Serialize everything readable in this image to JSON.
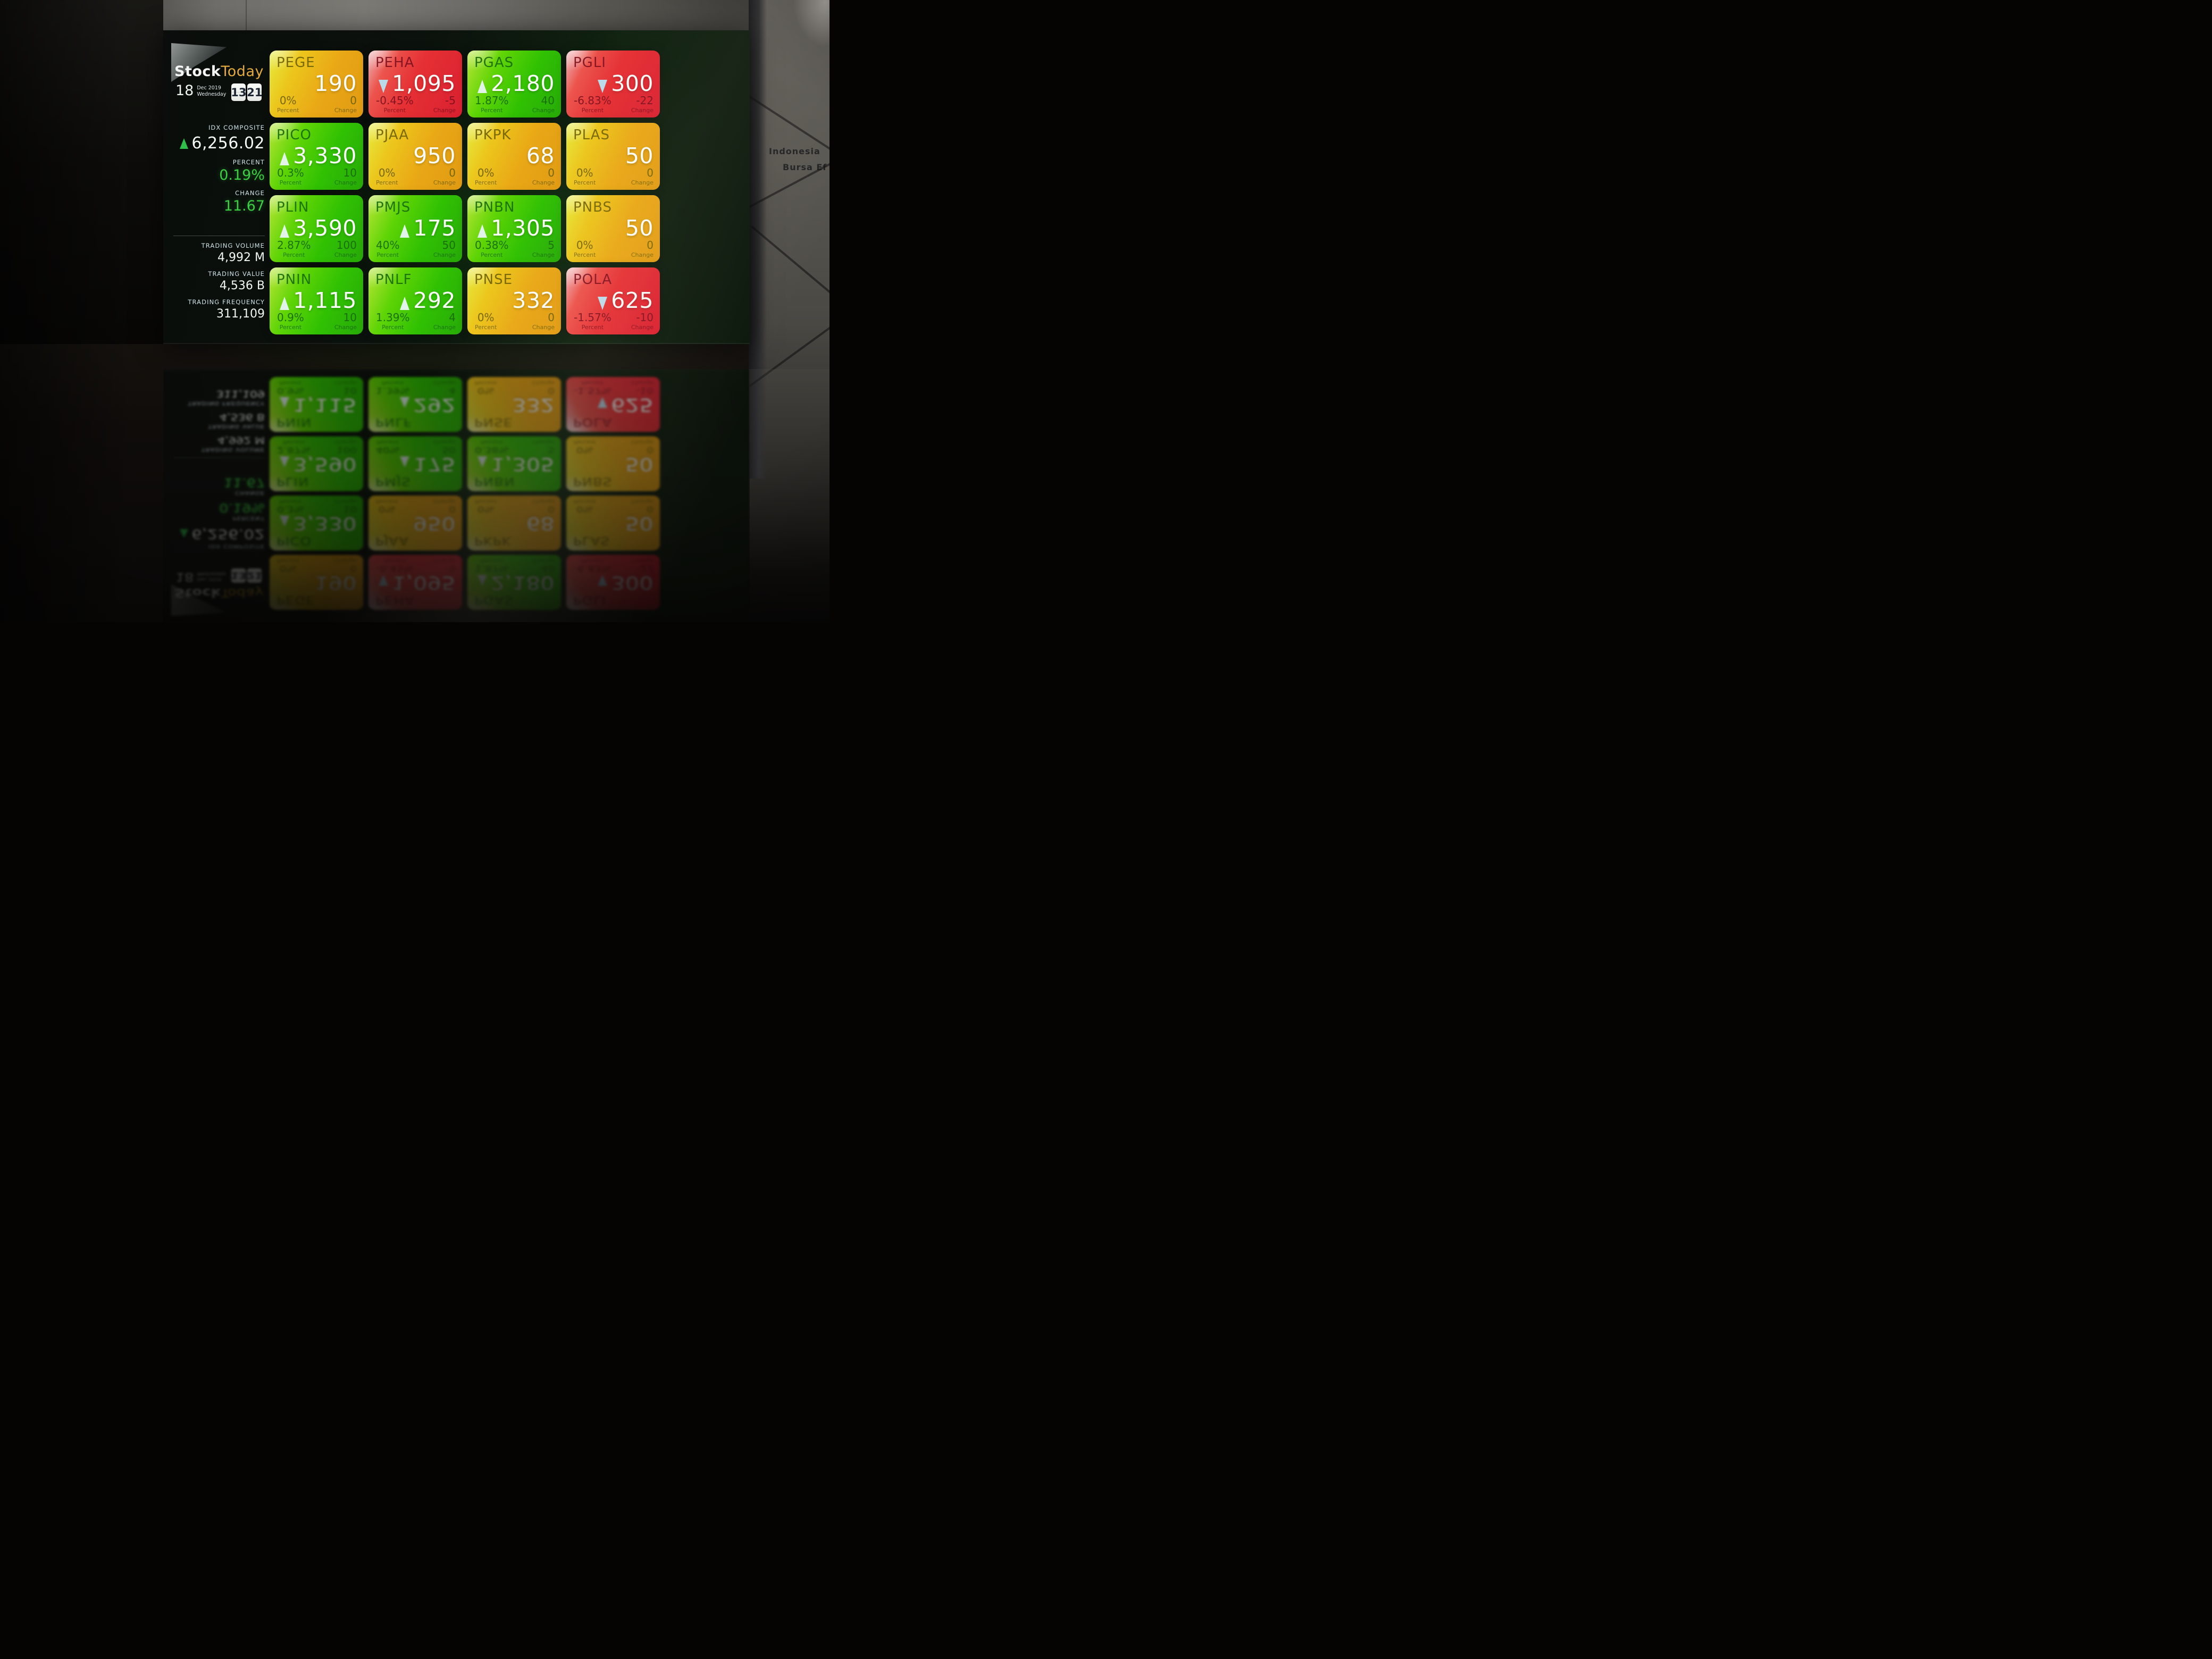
{
  "brand": {
    "title_primary": "Stock",
    "title_secondary": "Today"
  },
  "datetime": {
    "day": "18",
    "month_year": "Dec 2019",
    "weekday": "Wednesday",
    "clock_hh": "13",
    "clock_mm": "21"
  },
  "index": {
    "label": "IDX COMPOSITE",
    "value": "6,256.02",
    "direction": "up",
    "percent_label": "PERCENT",
    "percent": "0.19%",
    "change_label": "CHANGE",
    "change": "11.67"
  },
  "stats": [
    {
      "label": "TRADING VOLUME",
      "value": "4,992 M"
    },
    {
      "label": "TRADING VALUE",
      "value": "4,536 B"
    },
    {
      "label": "TRADING FREQUENCY",
      "value": "311,109"
    }
  ],
  "tile_labels": {
    "percent": "Percent",
    "change": "Change"
  },
  "tiles": [
    {
      "symbol": "PEGE",
      "price": "190",
      "direction": "flat",
      "percent": "0%",
      "change": "0",
      "color": "orange"
    },
    {
      "symbol": "PEHA",
      "price": "1,095",
      "direction": "down",
      "percent": "-0.45%",
      "change": "-5",
      "color": "red"
    },
    {
      "symbol": "PGAS",
      "price": "2,180",
      "direction": "up",
      "percent": "1.87%",
      "change": "40",
      "color": "green"
    },
    {
      "symbol": "PGLI",
      "price": "300",
      "direction": "down",
      "percent": "-6.83%",
      "change": "-22",
      "color": "red"
    },
    {
      "symbol": "PICO",
      "price": "3,330",
      "direction": "up",
      "percent": "0.3%",
      "change": "10",
      "color": "green"
    },
    {
      "symbol": "PJAA",
      "price": "950",
      "direction": "flat",
      "percent": "0%",
      "change": "0",
      "color": "orange"
    },
    {
      "symbol": "PKPK",
      "price": "68",
      "direction": "flat",
      "percent": "0%",
      "change": "0",
      "color": "orange"
    },
    {
      "symbol": "PLAS",
      "price": "50",
      "direction": "flat",
      "percent": "0%",
      "change": "0",
      "color": "orange"
    },
    {
      "symbol": "PLIN",
      "price": "3,590",
      "direction": "up",
      "percent": "2.87%",
      "change": "100",
      "color": "green"
    },
    {
      "symbol": "PMJS",
      "price": "175",
      "direction": "up",
      "percent": "40%",
      "change": "50",
      "color": "green"
    },
    {
      "symbol": "PNBN",
      "price": "1,305",
      "direction": "up",
      "percent": "0.38%",
      "change": "5",
      "color": "green"
    },
    {
      "symbol": "PNBS",
      "price": "50",
      "direction": "flat",
      "percent": "0%",
      "change": "0",
      "color": "orange"
    },
    {
      "symbol": "PNIN",
      "price": "1,115",
      "direction": "up",
      "percent": "0.9%",
      "change": "10",
      "color": "green"
    },
    {
      "symbol": "PNLF",
      "price": "292",
      "direction": "up",
      "percent": "1.39%",
      "change": "4",
      "color": "green"
    },
    {
      "symbol": "PNSE",
      "price": "332",
      "direction": "flat",
      "percent": "0%",
      "change": "0",
      "color": "orange"
    },
    {
      "symbol": "POLA",
      "price": "625",
      "direction": "down",
      "percent": "-1.57%",
      "change": "-10",
      "color": "red"
    }
  ],
  "signage": {
    "line1": "Indonesia",
    "line2": "Bursa Ef"
  },
  "colors": {
    "tile_green": "#30c103",
    "tile_orange": "#e9a816",
    "tile_red": "#e53034",
    "up_green": "#2fbf4a",
    "brand_gold": "#e3aa3c",
    "positive_text": "#3ccf44"
  }
}
